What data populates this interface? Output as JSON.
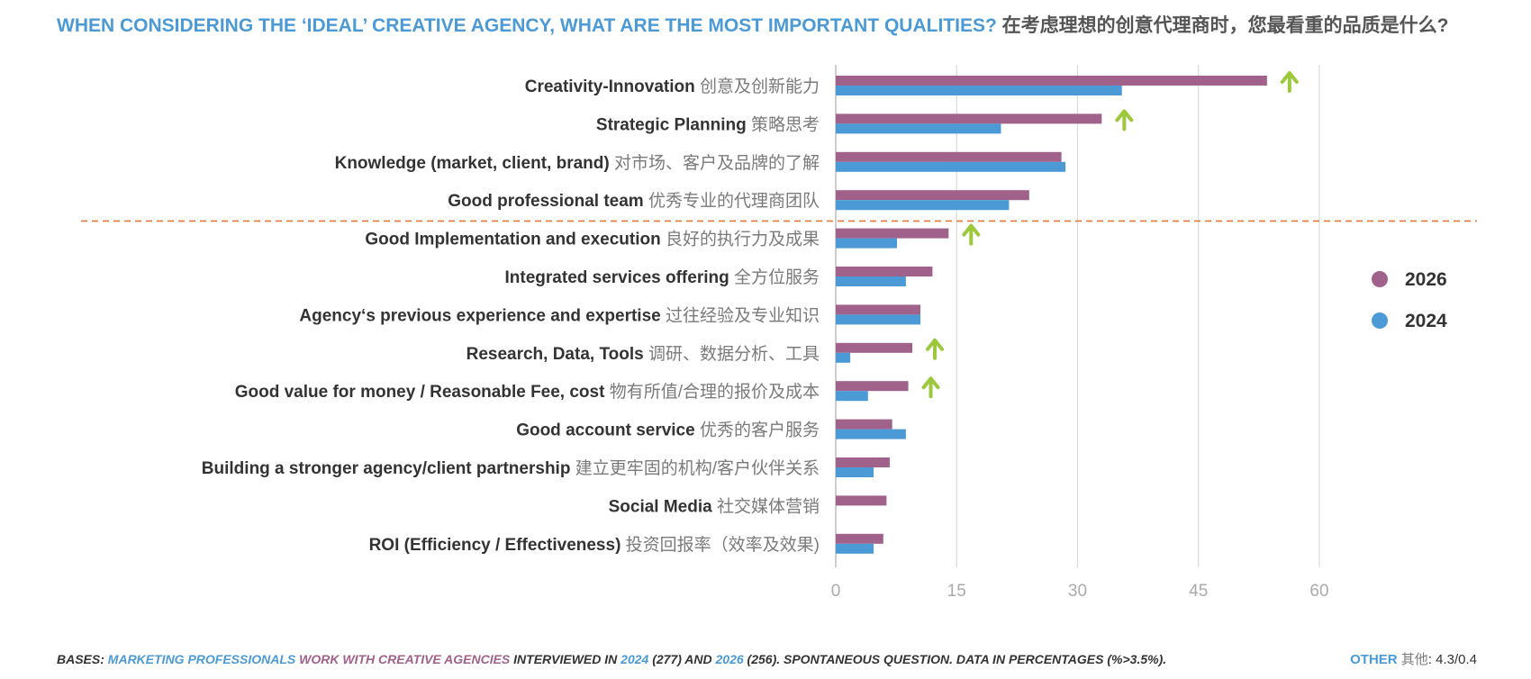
{
  "title": {
    "en": "WHEN CONSIDERING THE ‘IDEAL’ CREATIVE AGENCY, WHAT ARE THE MOST IMPORTANT QUALITIES?",
    "zh": "在考虑理想的创意代理商时，您最看重的品质是什么?"
  },
  "chart_data": {
    "type": "bar",
    "orientation": "horizontal",
    "categories": [
      {
        "en": "Creativity-Innovation",
        "zh": "创意及创新能力"
      },
      {
        "en": "Strategic Planning",
        "zh": "策略思考"
      },
      {
        "en": "Knowledge (market, client, brand)",
        "zh": "对市场、客户及品牌的了解"
      },
      {
        "en": "Good professional team",
        "zh": "优秀专业的代理商团队"
      },
      {
        "en": "Good Implementation and execution",
        "zh": "良好的执行力及成果"
      },
      {
        "en": "Integrated services offering",
        "zh": "全方位服务"
      },
      {
        "en": "Agency‘s previous experience and expertise",
        "zh": "过往经验及专业知识"
      },
      {
        "en": "Research, Data, Tools",
        "zh": "调研、数据分析、工具"
      },
      {
        "en": "Good value for money / Reasonable Fee, cost",
        "zh": "物有所值/合理的报价及成本"
      },
      {
        "en": "Good account service",
        "zh": "优秀的客户服务"
      },
      {
        "en": "Building a stronger agency/client partnership",
        "zh": "建立更牢固的机构/客户伙伴关系"
      },
      {
        "en": "Social Media",
        "zh": "社交媒体营销"
      },
      {
        "en": "ROI (Efficiency / Effectiveness)",
        "zh": "投资回报率（效率及效果)"
      }
    ],
    "series": [
      {
        "name": "2026",
        "color": "#a0618a",
        "values": [
          53.5,
          33,
          28,
          24,
          14,
          12,
          10.5,
          9.5,
          9,
          7,
          6.7,
          6.3,
          5.9
        ]
      },
      {
        "name": "2024",
        "color": "#4b9ad6",
        "values": [
          35.5,
          20.5,
          28.5,
          21.5,
          7.6,
          8.7,
          10.5,
          1.8,
          4,
          8.7,
          4.7,
          null,
          4.7
        ]
      }
    ],
    "increase_markers": [
      0,
      1,
      4,
      7,
      8
    ],
    "marker_color": "#9dc83b",
    "divider_after_index": 3,
    "divider_color": "#e07a3a",
    "xlim": [
      0,
      60
    ],
    "xticks": [
      0,
      15,
      30,
      45,
      60
    ],
    "grid": true,
    "legend_position": "right"
  },
  "footer": {
    "bases_prefix": "BASES: ",
    "group_a": "MARKETING PROFESSIONALS",
    "group_b": " WORK WITH CREATIVE AGENCIES",
    "mid": " INTERVIEWED IN ",
    "year_1": "2024",
    "count_1": " (277) AND ",
    "year_2": "2026",
    "rest": " (256). SPONTANEOUS QUESTION. DATA IN PERCENTAGES (%>3.5%)."
  },
  "other_note": {
    "label_en": "OTHER",
    "label_zh": " 其他",
    "values": ": 4.3/0.4"
  }
}
